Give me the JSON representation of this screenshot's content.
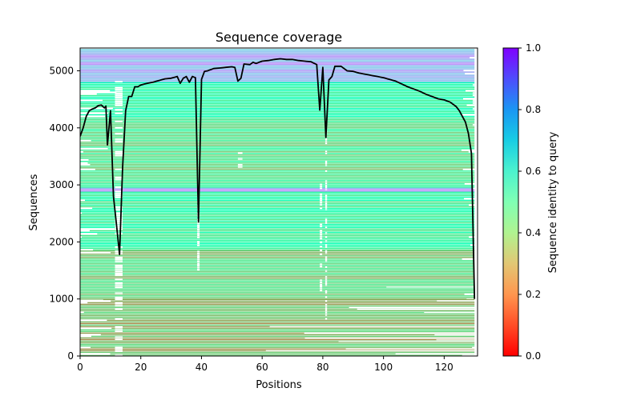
{
  "chart_data": {
    "type": "heatmap",
    "title": "Sequence coverage",
    "xlabel": "Positions",
    "ylabel": "Sequences",
    "xlim": [
      0,
      131
    ],
    "ylim": [
      0,
      5400
    ],
    "x_ticks": [
      0,
      20,
      40,
      60,
      80,
      100,
      120
    ],
    "y_ticks": [
      0,
      1000,
      2000,
      3000,
      4000,
      5000
    ],
    "colorbar": {
      "label": "Sequence identity to query",
      "colormap": "rainbow_r",
      "range": [
        0,
        1
      ],
      "ticks": [
        "0.0",
        "0.2",
        "0.4",
        "0.6",
        "0.8",
        "1.0"
      ]
    },
    "heatmap_bands": [
      {
        "y0": 4800,
        "y1": 5380,
        "identity": 0.78
      },
      {
        "y0": 4150,
        "y1": 4800,
        "identity": 0.45
      },
      {
        "y0": 2950,
        "y1": 4150,
        "identity": 0.35
      },
      {
        "y0": 2880,
        "y1": 2950,
        "identity": 0.8
      },
      {
        "y0": 1850,
        "y1": 2880,
        "identity": 0.42
      },
      {
        "y0": 1000,
        "y1": 1850,
        "identity": 0.32
      },
      {
        "y0": 0,
        "y1": 1000,
        "identity": 0.25
      }
    ],
    "coverage_line": {
      "name": "",
      "color": "#000000",
      "points": [
        [
          0,
          3850
        ],
        [
          1,
          4000
        ],
        [
          2,
          4200
        ],
        [
          3,
          4300
        ],
        [
          4,
          4330
        ],
        [
          5,
          4350
        ],
        [
          6,
          4390
        ],
        [
          7,
          4400
        ],
        [
          8,
          4350
        ],
        [
          8.5,
          4380
        ],
        [
          9,
          3700
        ],
        [
          10,
          4300
        ],
        [
          11,
          2800
        ],
        [
          12,
          2300
        ],
        [
          13,
          1780
        ],
        [
          14,
          3300
        ],
        [
          15,
          4300
        ],
        [
          16,
          4550
        ],
        [
          17,
          4550
        ],
        [
          18,
          4720
        ],
        [
          19,
          4720
        ],
        [
          20,
          4750
        ],
        [
          22,
          4780
        ],
        [
          24,
          4800
        ],
        [
          26,
          4830
        ],
        [
          28,
          4860
        ],
        [
          30,
          4870
        ],
        [
          32,
          4900
        ],
        [
          33,
          4780
        ],
        [
          34,
          4870
        ],
        [
          35,
          4900
        ],
        [
          36,
          4800
        ],
        [
          37,
          4900
        ],
        [
          38,
          4880
        ],
        [
          39,
          2350
        ],
        [
          40,
          4850
        ],
        [
          41,
          4990
        ],
        [
          42,
          5000
        ],
        [
          44,
          5040
        ],
        [
          46,
          5050
        ],
        [
          48,
          5060
        ],
        [
          50,
          5070
        ],
        [
          51,
          5060
        ],
        [
          52,
          4820
        ],
        [
          53,
          4870
        ],
        [
          54,
          5120
        ],
        [
          56,
          5110
        ],
        [
          57,
          5150
        ],
        [
          58,
          5130
        ],
        [
          60,
          5170
        ],
        [
          62,
          5180
        ],
        [
          64,
          5200
        ],
        [
          66,
          5210
        ],
        [
          68,
          5200
        ],
        [
          70,
          5200
        ],
        [
          72,
          5180
        ],
        [
          74,
          5170
        ],
        [
          76,
          5160
        ],
        [
          78,
          5110
        ],
        [
          79,
          4310
        ],
        [
          80,
          5060
        ],
        [
          81,
          3830
        ],
        [
          82,
          4840
        ],
        [
          83,
          4900
        ],
        [
          84,
          5080
        ],
        [
          86,
          5080
        ],
        [
          88,
          5000
        ],
        [
          90,
          4990
        ],
        [
          92,
          4960
        ],
        [
          94,
          4940
        ],
        [
          96,
          4920
        ],
        [
          98,
          4900
        ],
        [
          100,
          4880
        ],
        [
          102,
          4850
        ],
        [
          104,
          4820
        ],
        [
          106,
          4770
        ],
        [
          108,
          4720
        ],
        [
          110,
          4680
        ],
        [
          112,
          4640
        ],
        [
          114,
          4590
        ],
        [
          116,
          4550
        ],
        [
          118,
          4510
        ],
        [
          120,
          4490
        ],
        [
          122,
          4450
        ],
        [
          124,
          4370
        ],
        [
          125,
          4300
        ],
        [
          126,
          4200
        ],
        [
          127,
          4100
        ],
        [
          128,
          3900
        ],
        [
          129,
          3550
        ],
        [
          130,
          1000
        ]
      ]
    }
  }
}
